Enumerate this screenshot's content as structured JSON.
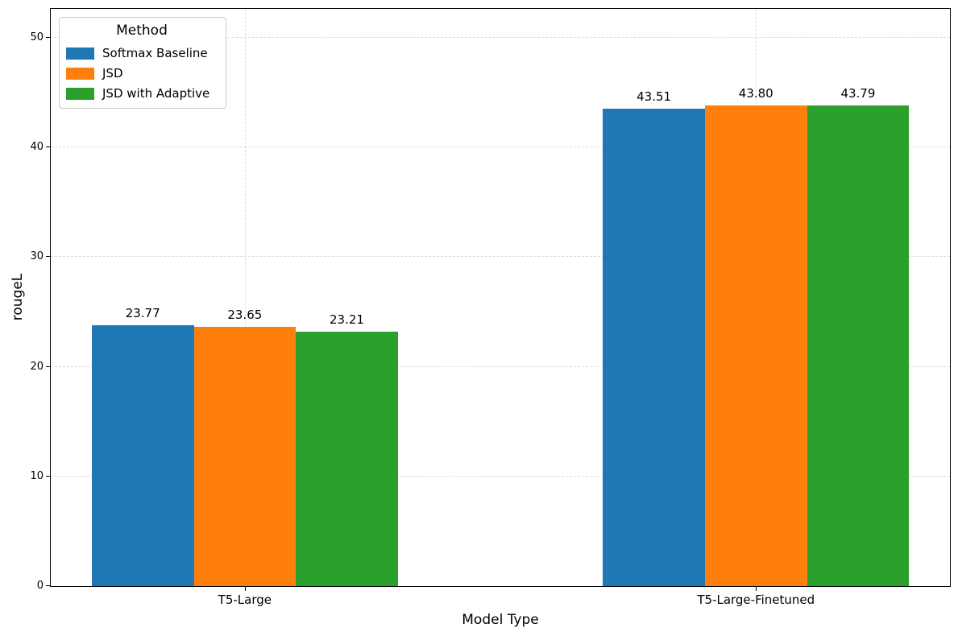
{
  "chart_data": {
    "type": "bar",
    "title": "",
    "xlabel": "Model Type",
    "ylabel": "rougeL",
    "categories": [
      "T5-Large",
      "T5-Large-Finetuned"
    ],
    "series": [
      {
        "name": "Softmax Baseline",
        "color": "#1f77b4",
        "values": [
          23.77,
          43.51
        ]
      },
      {
        "name": "JSD",
        "color": "#ff7f0e",
        "values": [
          23.65,
          43.8
        ]
      },
      {
        "name": "JSD with Adaptive",
        "color": "#2ca02c",
        "values": [
          23.21,
          43.79
        ]
      }
    ],
    "bar_value_labels": [
      [
        "23.77",
        "43.51"
      ],
      [
        "23.65",
        "43.80"
      ],
      [
        "23.21",
        "43.79"
      ]
    ],
    "yticks": [
      0,
      10,
      20,
      30,
      40,
      50
    ],
    "ylim": [
      0,
      52.56
    ],
    "grid": "dashed-both-axes",
    "legend": {
      "title": "Method",
      "position": "upper-left",
      "entries": [
        "Softmax Baseline",
        "JSD",
        "JSD with Adaptive"
      ]
    }
  }
}
